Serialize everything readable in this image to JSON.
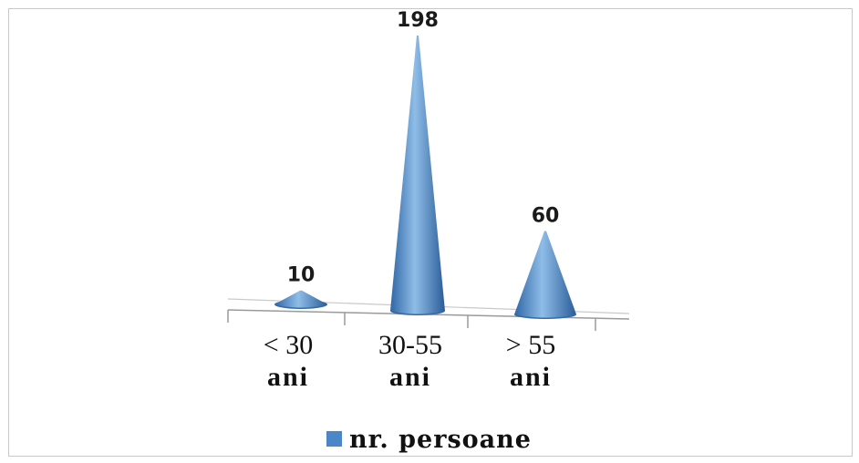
{
  "chart_data": {
    "type": "bar",
    "bar_shape": "cone-3d",
    "categories": [
      {
        "line1": "< 30",
        "line2": "ani"
      },
      {
        "line1": "30-55",
        "line2": "ani"
      },
      {
        "line1": "> 55",
        "line2": "ani"
      }
    ],
    "series": [
      {
        "name": "nr. persoane",
        "values": [
          10,
          198,
          60
        ],
        "color": "#4a86c8"
      }
    ],
    "data_labels": [
      "10",
      "198",
      "60"
    ],
    "ylim": [
      0,
      198
    ],
    "grid": false,
    "legend": {
      "position": "bottom",
      "label": "nr. persoane"
    }
  }
}
